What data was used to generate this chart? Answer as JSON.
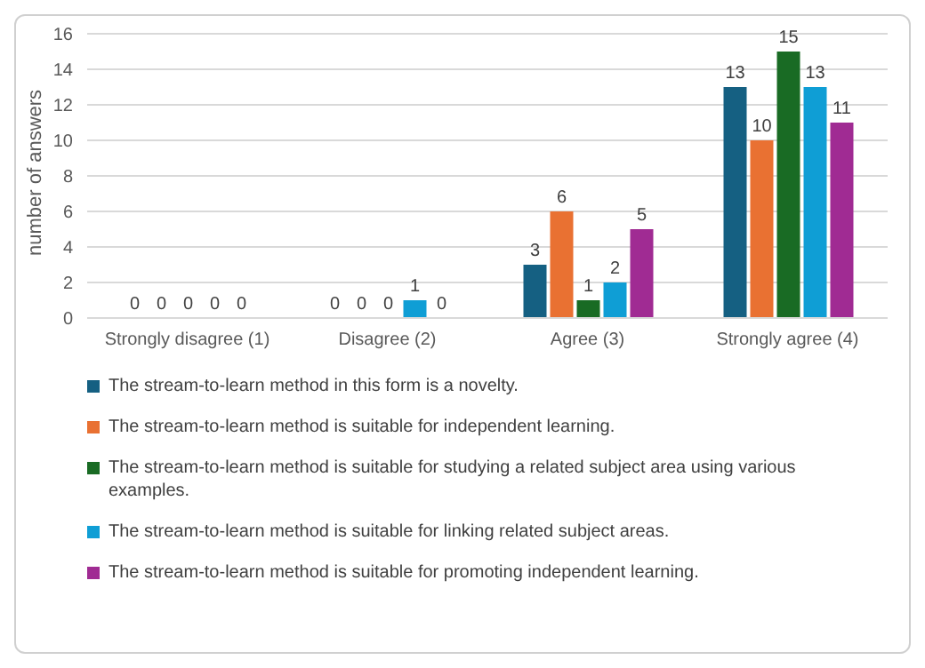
{
  "chart_data": {
    "type": "bar",
    "ylabel": "number of answers",
    "categories": [
      "Strongly disagree (1)",
      "Disagree (2)",
      "Agree (3)",
      "Strongly agree (4)"
    ],
    "series": [
      {
        "name": "The stream-to-learn method in this form is a novelty.",
        "color": "#156082",
        "values": [
          0,
          0,
          3,
          13
        ]
      },
      {
        "name": "The stream-to-learn method is suitable for independent learning.",
        "color": "#e97132",
        "values": [
          0,
          0,
          6,
          10
        ]
      },
      {
        "name": "The stream-to-learn method is suitable for studying a related subject area using various examples.",
        "color": "#196b24",
        "values": [
          0,
          0,
          1,
          15
        ]
      },
      {
        "name": "The stream-to-learn method is suitable for linking related subject areas.",
        "color": "#0f9ed5",
        "values": [
          0,
          1,
          2,
          13
        ]
      },
      {
        "name": "The stream-to-learn method is suitable for promoting independent learning.",
        "color": "#a02b93",
        "values": [
          0,
          0,
          5,
          11
        ]
      }
    ],
    "ylim": [
      0,
      16
    ],
    "yticks": [
      0,
      2,
      4,
      6,
      8,
      10,
      12,
      14,
      16
    ],
    "grid": "y",
    "legend": "bottom",
    "data_labels": true
  }
}
